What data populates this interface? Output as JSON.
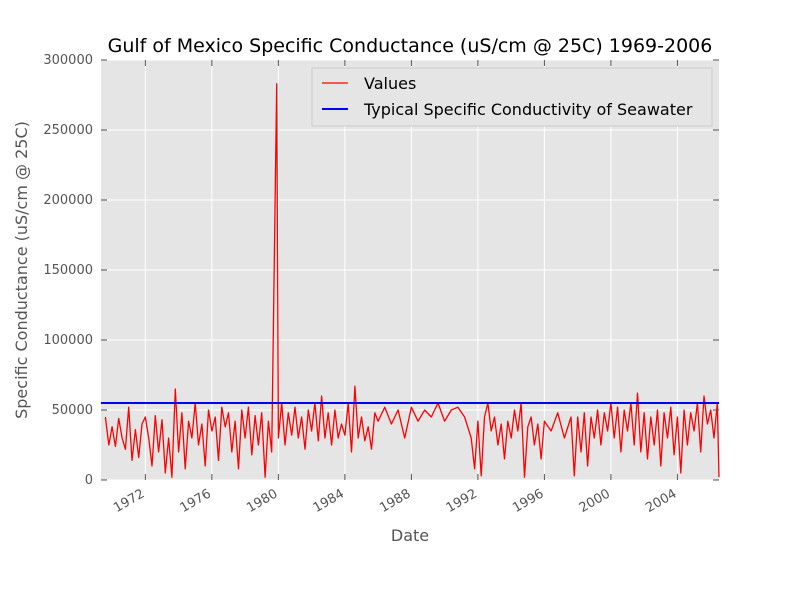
{
  "chart_data": {
    "type": "line",
    "title": "Gulf of Mexico Specific Conductance (uS/cm @ 25C) 1969-2006",
    "xlabel": "Date",
    "ylabel": "Specific Conductance (uS/cm @ 25C)",
    "xlim": [
      "1969-05",
      "2006-07"
    ],
    "ylim": [
      0,
      300000
    ],
    "yticks": [
      "0",
      "50000",
      "100000",
      "150000",
      "200000",
      "250000",
      "300000"
    ],
    "xticks": [
      "1972",
      "1976",
      "1980",
      "1984",
      "1988",
      "1992",
      "1996",
      "2000",
      "2004"
    ],
    "grid": true,
    "legend": "top-right",
    "series": [
      {
        "name": "Values",
        "color": "#ff0000",
        "points": [
          [
            "1969.6",
            45000
          ],
          [
            "1969.8",
            25000
          ],
          [
            "1970.0",
            38000
          ],
          [
            "1970.2",
            24000
          ],
          [
            "1970.4",
            44000
          ],
          [
            "1970.6",
            30000
          ],
          [
            "1970.8",
            22000
          ],
          [
            "1971.0",
            52000
          ],
          [
            "1971.2",
            14000
          ],
          [
            "1971.4",
            36000
          ],
          [
            "1971.6",
            16000
          ],
          [
            "1971.8",
            40000
          ],
          [
            "1972.0",
            45000
          ],
          [
            "1972.2",
            30000
          ],
          [
            "1972.4",
            10000
          ],
          [
            "1972.6",
            46000
          ],
          [
            "1972.8",
            20000
          ],
          [
            "1973.0",
            43000
          ],
          [
            "1973.2",
            5000
          ],
          [
            "1973.4",
            30000
          ],
          [
            "1973.6",
            2000
          ],
          [
            "1973.8",
            65000
          ],
          [
            "1974.0",
            20000
          ],
          [
            "1974.2",
            48000
          ],
          [
            "1974.4",
            8000
          ],
          [
            "1974.6",
            42000
          ],
          [
            "1974.8",
            30000
          ],
          [
            "1975.0",
            55000
          ],
          [
            "1975.2",
            25000
          ],
          [
            "1975.4",
            40000
          ],
          [
            "1975.6",
            10000
          ],
          [
            "1975.8",
            50000
          ],
          [
            "1976.0",
            35000
          ],
          [
            "1976.2",
            45000
          ],
          [
            "1976.4",
            14000
          ],
          [
            "1976.6",
            52000
          ],
          [
            "1976.8",
            38000
          ],
          [
            "1977.0",
            48000
          ],
          [
            "1977.2",
            20000
          ],
          [
            "1977.4",
            42000
          ],
          [
            "1977.6",
            8000
          ],
          [
            "1977.8",
            50000
          ],
          [
            "1978.0",
            30000
          ],
          [
            "1978.2",
            52000
          ],
          [
            "1978.4",
            18000
          ],
          [
            "1978.6",
            46000
          ],
          [
            "1978.8",
            25000
          ],
          [
            "1979.0",
            48000
          ],
          [
            "1979.2",
            2000
          ],
          [
            "1979.4",
            42000
          ],
          [
            "1979.6",
            20000
          ],
          [
            "1979.9",
            283000
          ],
          [
            "1980.0",
            30000
          ],
          [
            "1980.2",
            55000
          ],
          [
            "1980.4",
            25000
          ],
          [
            "1980.6",
            48000
          ],
          [
            "1980.8",
            32000
          ],
          [
            "1981.0",
            52000
          ],
          [
            "1981.2",
            30000
          ],
          [
            "1981.4",
            45000
          ],
          [
            "1981.6",
            22000
          ],
          [
            "1981.8",
            50000
          ],
          [
            "1982.0",
            35000
          ],
          [
            "1982.2",
            55000
          ],
          [
            "1982.4",
            28000
          ],
          [
            "1982.6",
            60000
          ],
          [
            "1982.8",
            30000
          ],
          [
            "1983.0",
            48000
          ],
          [
            "1983.2",
            25000
          ],
          [
            "1983.4",
            50000
          ],
          [
            "1983.6",
            30000
          ],
          [
            "1983.8",
            40000
          ],
          [
            "1984.0",
            32000
          ],
          [
            "1984.2",
            55000
          ],
          [
            "1984.4",
            20000
          ],
          [
            "1984.6",
            67000
          ],
          [
            "1984.8",
            30000
          ],
          [
            "1985.0",
            45000
          ],
          [
            "1985.2",
            28000
          ],
          [
            "1985.4",
            38000
          ],
          [
            "1985.6",
            22000
          ],
          [
            "1985.8",
            48000
          ],
          [
            "1986.0",
            42000
          ],
          [
            "1986.4",
            52000
          ],
          [
            "1986.8",
            40000
          ],
          [
            "1987.2",
            50000
          ],
          [
            "1987.6",
            30000
          ],
          [
            "1988.0",
            52000
          ],
          [
            "1988.4",
            42000
          ],
          [
            "1988.8",
            50000
          ],
          [
            "1989.2",
            45000
          ],
          [
            "1989.6",
            55000
          ],
          [
            "1990.0",
            42000
          ],
          [
            "1990.4",
            50000
          ],
          [
            "1990.8",
            52000
          ],
          [
            "1991.2",
            45000
          ],
          [
            "1991.6",
            30000
          ],
          [
            "1991.8",
            8000
          ],
          [
            "1992.0",
            42000
          ],
          [
            "1992.2",
            3000
          ],
          [
            "1992.4",
            45000
          ],
          [
            "1992.6",
            55000
          ],
          [
            "1992.8",
            35000
          ],
          [
            "1993.0",
            45000
          ],
          [
            "1993.2",
            25000
          ],
          [
            "1993.4",
            40000
          ],
          [
            "1993.6",
            15000
          ],
          [
            "1993.8",
            42000
          ],
          [
            "1994.0",
            30000
          ],
          [
            "1994.2",
            50000
          ],
          [
            "1994.4",
            35000
          ],
          [
            "1994.6",
            55000
          ],
          [
            "1994.8",
            2000
          ],
          [
            "1995.0",
            38000
          ],
          [
            "1995.2",
            45000
          ],
          [
            "1995.4",
            25000
          ],
          [
            "1995.6",
            40000
          ],
          [
            "1995.8",
            15000
          ],
          [
            "1996.0",
            42000
          ],
          [
            "1996.4",
            35000
          ],
          [
            "1996.8",
            48000
          ],
          [
            "1997.2",
            30000
          ],
          [
            "1997.6",
            45000
          ],
          [
            "1997.8",
            3000
          ],
          [
            "1998.0",
            45000
          ],
          [
            "1998.2",
            20000
          ],
          [
            "1998.4",
            48000
          ],
          [
            "1998.6",
            10000
          ],
          [
            "1998.8",
            45000
          ],
          [
            "1999.0",
            30000
          ],
          [
            "1999.2",
            50000
          ],
          [
            "1999.4",
            25000
          ],
          [
            "1999.6",
            48000
          ],
          [
            "1999.8",
            35000
          ],
          [
            "2000.0",
            55000
          ],
          [
            "2000.2",
            30000
          ],
          [
            "2000.4",
            52000
          ],
          [
            "2000.6",
            20000
          ],
          [
            "2000.8",
            50000
          ],
          [
            "2001.0",
            35000
          ],
          [
            "2001.2",
            55000
          ],
          [
            "2001.4",
            25000
          ],
          [
            "2001.6",
            62000
          ],
          [
            "2001.8",
            20000
          ],
          [
            "2002.0",
            48000
          ],
          [
            "2002.2",
            15000
          ],
          [
            "2002.4",
            45000
          ],
          [
            "2002.6",
            25000
          ],
          [
            "2002.8",
            50000
          ],
          [
            "2003.0",
            10000
          ],
          [
            "2003.2",
            48000
          ],
          [
            "2003.4",
            30000
          ],
          [
            "2003.6",
            52000
          ],
          [
            "2003.8",
            18000
          ],
          [
            "2004.0",
            45000
          ],
          [
            "2004.2",
            5000
          ],
          [
            "2004.4",
            50000
          ],
          [
            "2004.6",
            25000
          ],
          [
            "2004.8",
            48000
          ],
          [
            "2005.0",
            35000
          ],
          [
            "2005.2",
            55000
          ],
          [
            "2005.4",
            20000
          ],
          [
            "2005.6",
            60000
          ],
          [
            "2005.8",
            40000
          ],
          [
            "2006.0",
            50000
          ],
          [
            "2006.2",
            30000
          ],
          [
            "2006.4",
            55000
          ],
          [
            "2006.5",
            2000
          ]
        ]
      },
      {
        "name": "Typical Specific Conductivity of Seawater",
        "color": "#0000ff",
        "constant": 55000
      }
    ]
  }
}
